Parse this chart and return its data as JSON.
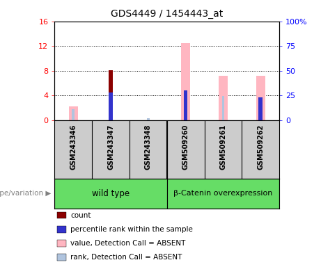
{
  "title": "GDS4449 / 1454443_at",
  "samples": [
    "GSM243346",
    "GSM243347",
    "GSM243348",
    "GSM509260",
    "GSM509261",
    "GSM509262"
  ],
  "count_values": [
    0,
    8.1,
    0,
    0,
    0,
    0
  ],
  "percentile_rank_values": [
    0,
    4.5,
    0,
    4.8,
    0,
    3.7
  ],
  "absent_value_values": [
    2.2,
    0,
    0,
    12.5,
    7.2,
    7.2
  ],
  "absent_rank_values": [
    1.8,
    0,
    0.35,
    0,
    3.9,
    0
  ],
  "left_ylim": [
    0,
    16
  ],
  "right_ylim": [
    0,
    100
  ],
  "left_yticks": [
    0,
    4,
    8,
    12,
    16
  ],
  "right_yticks": [
    0,
    25,
    50,
    75,
    100
  ],
  "left_ytick_labels": [
    "0",
    "4",
    "8",
    "12",
    "16"
  ],
  "right_ytick_labels": [
    "0",
    "25",
    "50",
    "75",
    "100%"
  ],
  "count_color": "#8b0000",
  "percentile_color": "#3333cc",
  "absent_value_color": "#ffb6c1",
  "absent_rank_color": "#b0c4de",
  "grid_color": "black",
  "plot_bg": "white",
  "label_bg": "#cccccc",
  "group_bg": "#66dd66",
  "wild_type_label": "wild type",
  "beta_catenin_label": "β-Catenin overexpression",
  "genotype_label": "genotype/variation",
  "legend_items": [
    {
      "color": "#8b0000",
      "label": "count"
    },
    {
      "color": "#3333cc",
      "label": "percentile rank within the sample"
    },
    {
      "color": "#ffb6c1",
      "label": "value, Detection Call = ABSENT"
    },
    {
      "color": "#b0c4de",
      "label": "rank, Detection Call = ABSENT"
    }
  ]
}
